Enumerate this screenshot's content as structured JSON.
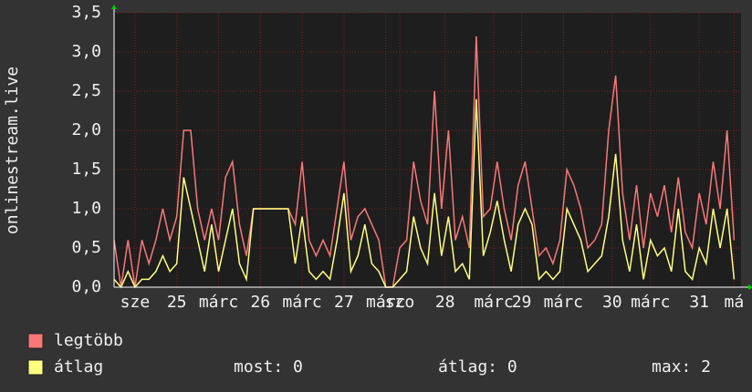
{
  "chart_data": {
    "type": "line",
    "y_label": "onlinestream.live",
    "xlim": [
      0,
      180
    ],
    "ylim": [
      0,
      3.5
    ],
    "yticks": [
      {
        "value": 0,
        "label": "0,0"
      },
      {
        "value": 0.5,
        "label": "0,5"
      },
      {
        "value": 1,
        "label": "1,0"
      },
      {
        "value": 1.5,
        "label": "1,5"
      },
      {
        "value": 2,
        "label": "2,0"
      },
      {
        "value": 2.5,
        "label": "2,5"
      },
      {
        "value": 3,
        "label": "3,0"
      },
      {
        "value": 3.5,
        "label": "3,5"
      }
    ],
    "xticks": [
      {
        "value": 6,
        "label": "sze"
      },
      {
        "value": 18,
        "label": "25"
      },
      {
        "value": 30,
        "label": "márc"
      },
      {
        "value": 42,
        "label": "26"
      },
      {
        "value": 54,
        "label": "márc"
      },
      {
        "value": 66,
        "label": "27"
      },
      {
        "value": 78,
        "label": "márc"
      },
      {
        "value": 82,
        "label": "szo"
      },
      {
        "value": 95,
        "label": "28"
      },
      {
        "value": 109,
        "label": "márc"
      },
      {
        "value": 117,
        "label": "29"
      },
      {
        "value": 129,
        "label": "márc"
      },
      {
        "value": 143,
        "label": "30"
      },
      {
        "value": 154,
        "label": "márc"
      },
      {
        "value": 168,
        "label": "31"
      },
      {
        "value": 178,
        "label": "má"
      }
    ],
    "grid": true,
    "x": [
      0,
      2,
      4,
      6,
      8,
      10,
      12,
      14,
      16,
      18,
      20,
      22,
      24,
      26,
      28,
      30,
      32,
      34,
      36,
      38,
      40,
      42,
      44,
      46,
      48,
      50,
      52,
      54,
      56,
      58,
      60,
      62,
      64,
      66,
      68,
      70,
      72,
      74,
      76,
      78,
      80,
      82,
      84,
      86,
      88,
      90,
      92,
      94,
      96,
      98,
      100,
      102,
      104,
      106,
      108,
      110,
      112,
      114,
      116,
      118,
      120,
      122,
      124,
      126,
      128,
      130,
      132,
      134,
      136,
      138,
      140,
      142,
      144,
      146,
      148,
      150,
      152,
      154,
      156,
      158,
      160,
      162,
      164,
      166,
      168,
      170,
      172,
      174,
      176,
      178
    ],
    "series": [
      {
        "name": "legtöbb",
        "color": "#f87878",
        "values": [
          0.6,
          0,
          0.6,
          0,
          0.6,
          0.3,
          0.6,
          1.0,
          0.6,
          0.9,
          2.0,
          2.0,
          1.0,
          0.6,
          1.0,
          0.6,
          1.4,
          1.6,
          0.8,
          0.4,
          1.0,
          1.0,
          1.0,
          1.0,
          1.0,
          1.0,
          0.8,
          1.6,
          0.6,
          0.4,
          0.6,
          0.4,
          1.0,
          1.6,
          0.6,
          0.9,
          1.0,
          0.8,
          0.6,
          0,
          0,
          0.5,
          0.6,
          1.6,
          1.1,
          0.8,
          2.5,
          1.0,
          2.0,
          0.6,
          0.9,
          0.5,
          3.2,
          0.9,
          1.0,
          1.6,
          1.0,
          0.6,
          1.3,
          1.6,
          1.0,
          0.4,
          0.5,
          0.3,
          0.6,
          1.5,
          1.3,
          1.0,
          0.5,
          0.6,
          0.8,
          2.0,
          2.7,
          1.2,
          0.6,
          1.3,
          0.5,
          1.2,
          0.9,
          1.3,
          0.7,
          1.4,
          0.7,
          0.5,
          1.2,
          0.8,
          1.6,
          1.0,
          2.0,
          0.6
        ]
      },
      {
        "name": "átlag",
        "color": "#ffff80",
        "values": [
          0.1,
          0,
          0.2,
          0,
          0.1,
          0.1,
          0.2,
          0.4,
          0.2,
          0.3,
          1.4,
          1.0,
          0.6,
          0.2,
          0.8,
          0.2,
          0.6,
          1.0,
          0.3,
          0.1,
          1.0,
          1.0,
          1.0,
          1.0,
          1.0,
          1.0,
          0.3,
          0.9,
          0.2,
          0.1,
          0.2,
          0.1,
          0.6,
          1.2,
          0.2,
          0.4,
          0.8,
          0.3,
          0.2,
          0,
          0,
          0.1,
          0.2,
          0.9,
          0.5,
          0.3,
          1.2,
          0.4,
          0.9,
          0.2,
          0.3,
          0.1,
          2.4,
          0.4,
          0.7,
          1.1,
          0.6,
          0.2,
          0.8,
          1.0,
          0.8,
          0.1,
          0.2,
          0.1,
          0.2,
          1.0,
          0.8,
          0.6,
          0.2,
          0.3,
          0.4,
          0.9,
          1.7,
          0.6,
          0.2,
          0.8,
          0.1,
          0.6,
          0.4,
          0.5,
          0.2,
          1.0,
          0.2,
          0.1,
          0.5,
          0.3,
          1.0,
          0.5,
          1.0,
          0.1
        ]
      }
    ],
    "stats": [
      "most: 0",
      "átlag: 0",
      "max: 2"
    ]
  }
}
